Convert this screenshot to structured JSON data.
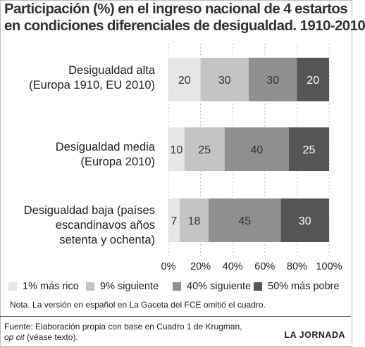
{
  "chart_data": {
    "type": "bar",
    "orientation": "horizontal",
    "stacked": true,
    "title_line1": "Participación (%) en el ingreso nacional de 4 estartos",
    "title_line2": "en condiciones diferenciales de desigualdad. 1910-2010",
    "categories": [
      {
        "line1": "Desigualdad alta",
        "line2": "(Europa 1910,  EU 2010)",
        "line3": ""
      },
      {
        "line1": "Desigualdad media",
        "line2": "(Europa 2010)",
        "line3": ""
      },
      {
        "line1": "Desigualdad baja (países",
        "line2": "escandinavos años",
        "line3": "setenta y ochenta)"
      }
    ],
    "series": [
      {
        "name": "1% más rico",
        "color": "#e6e6e6",
        "label_color": "#333333",
        "values": [
          20,
          10,
          7
        ]
      },
      {
        "name": "9% siguiente",
        "color": "#c4c4c4",
        "label_color": "#333333",
        "values": [
          30,
          25,
          18
        ]
      },
      {
        "name": "40% siguiente",
        "color": "#8f8f8f",
        "label_color": "#333333",
        "values": [
          30,
          40,
          45
        ]
      },
      {
        "name": "50% más pobre",
        "color": "#555555",
        "label_color": "#ffffff",
        "values": [
          20,
          25,
          30
        ]
      }
    ],
    "x_ticks": [
      "0%",
      "20%",
      "40%",
      "60%",
      "80%",
      "100%"
    ],
    "xlim": [
      0,
      100
    ],
    "grid": "vertical dashed",
    "legend_position": "bottom"
  },
  "nota": "Nota. La versión en español en La Gaceta del FCE omitió el cuadro.",
  "fuente_line1": "Fuente: Elaboración propia con base en Cuadro 1 de Krugman,",
  "fuente_line2": "op cit",
  "fuente_line2_rest": " (véase texto).",
  "logo": "LA JORNADA"
}
